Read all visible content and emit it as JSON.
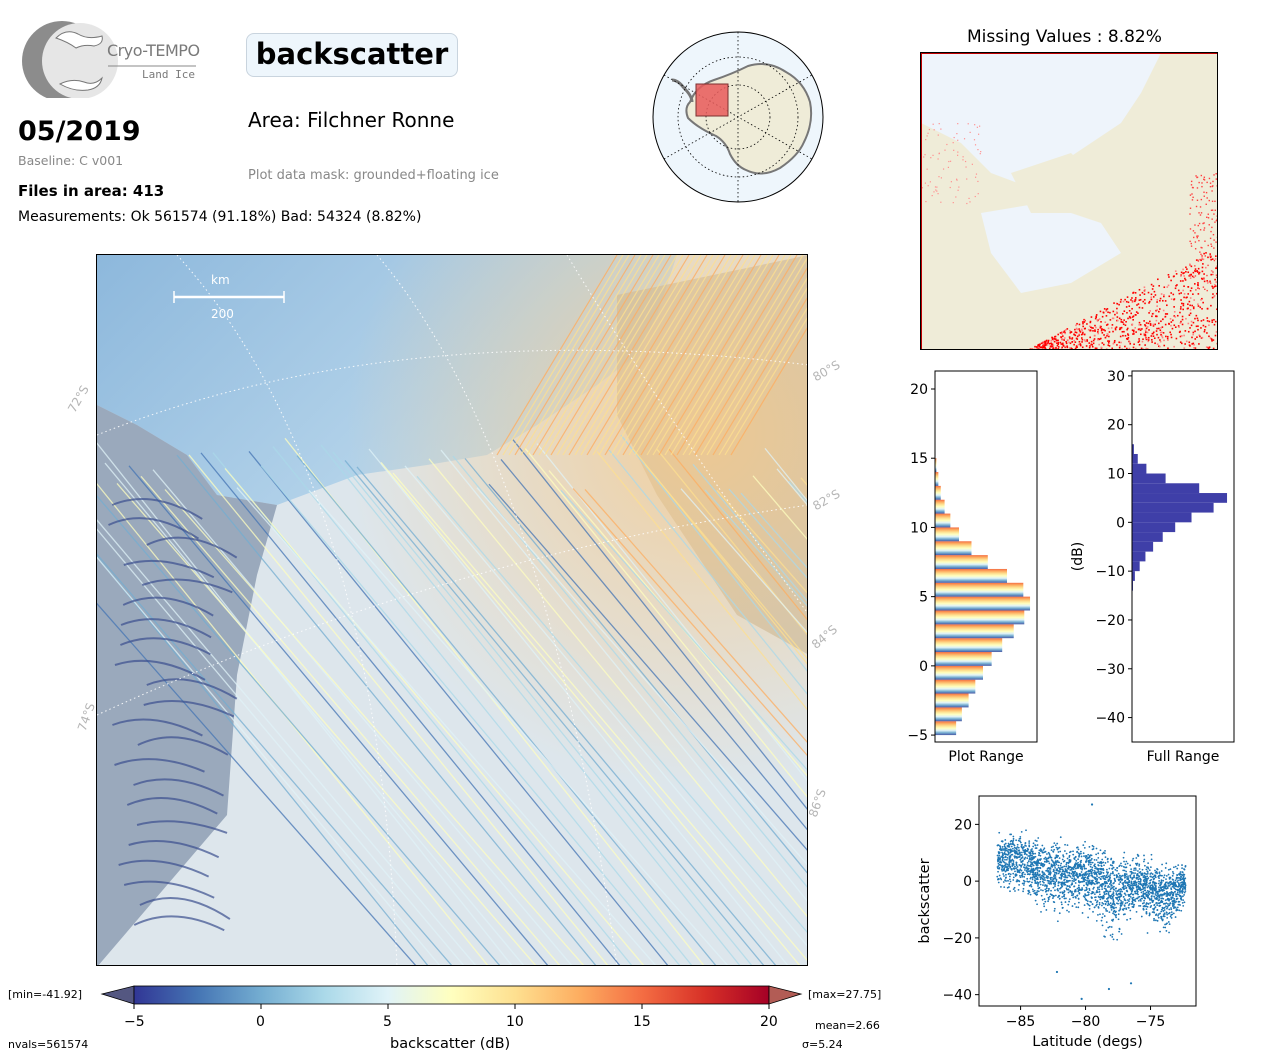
{
  "logo": {
    "name": "Cryo-TEMPO",
    "sub": "Land Ice"
  },
  "header": {
    "title": "backscatter",
    "date": "05/2019",
    "baseline": "Baseline: C v001",
    "area": "Area: Filchner Ronne",
    "mask": "Plot data mask: grounded+floating ice",
    "files": "Files in area: 413",
    "measurements": "Measurements: Ok 561574 (91.18%) Bad: 54324 (8.82%)"
  },
  "map": {
    "scale_unit": "km",
    "scale_value": "200",
    "lat_labels": [
      "72°S",
      "74°S",
      "80°S",
      "82°S",
      "84°S",
      "86°S"
    ]
  },
  "colorbar": {
    "min_label": "[min=-41.92]",
    "max_label": "[max=27.75]",
    "ticks": [
      "−5",
      "0",
      "5",
      "10",
      "15",
      "20"
    ],
    "label": "backscatter (dB)",
    "mean": "mean=2.66",
    "sigma": "σ=5.24",
    "nvals": "nvals=561574",
    "colormap": "RdYlBu_r"
  },
  "missing": {
    "title": "Missing Values : 8.82%"
  },
  "chart_data": [
    {
      "type": "histogram",
      "orientation": "horizontal",
      "xlabel": "Plot Range",
      "yticks": [
        "−5",
        "0",
        "5",
        "10",
        "15",
        "20"
      ],
      "ylim": [
        -5.5,
        21.3
      ],
      "bins": [
        -5,
        -4,
        -3,
        -2,
        -1,
        0,
        1,
        2,
        3,
        4,
        5,
        6,
        7,
        8,
        9,
        10,
        11,
        12,
        13,
        14,
        15
      ],
      "counts": [
        0.22,
        0.28,
        0.35,
        0.42,
        0.5,
        0.59,
        0.7,
        0.82,
        0.93,
        0.99,
        0.92,
        0.75,
        0.55,
        0.38,
        0.25,
        0.16,
        0.1,
        0.06,
        0.035,
        0.015,
        0.005
      ]
    },
    {
      "type": "histogram",
      "orientation": "horizontal",
      "xlabel": "Full Range",
      "ylabel": "(dB)",
      "yticks": [
        "30",
        "20",
        "10",
        "0",
        "−10",
        "−20",
        "−30",
        "−40"
      ],
      "ylim": [
        -45,
        31
      ],
      "bins": [
        -14,
        -12,
        -10,
        -8,
        -6,
        -4,
        -2,
        0,
        2,
        4,
        6,
        8,
        10,
        12,
        14,
        16
      ],
      "counts": [
        0.01,
        0.03,
        0.08,
        0.14,
        0.22,
        0.32,
        0.45,
        0.62,
        0.85,
        0.99,
        0.7,
        0.35,
        0.15,
        0.06,
        0.02,
        0.005
      ]
    },
    {
      "type": "scatter",
      "xlabel": "Latitude (degs)",
      "ylabel": "backscatter",
      "xticks": [
        "−85",
        "−80",
        "−75"
      ],
      "yticks": [
        "20",
        "0",
        "−20",
        "−40"
      ],
      "xlim": [
        -88.2,
        -71.5
      ],
      "ylim": [
        -44,
        30
      ],
      "band_upper": [
        [
          -86.8,
          18
        ],
        [
          -85,
          20
        ],
        [
          -83,
          17
        ],
        [
          -81,
          15
        ],
        [
          -79,
          17
        ],
        [
          -77,
          12
        ],
        [
          -75,
          10
        ],
        [
          -73,
          8
        ],
        [
          -72.3,
          7
        ]
      ],
      "band_lower": [
        [
          -86.8,
          -5
        ],
        [
          -85,
          -10
        ],
        [
          -83,
          -18
        ],
        [
          -81,
          -14
        ],
        [
          -79,
          -22
        ],
        [
          -78,
          -28
        ],
        [
          -76,
          -16
        ],
        [
          -74,
          -25
        ],
        [
          -72.3,
          -12
        ]
      ],
      "outliers": [
        [
          -79.5,
          27
        ],
        [
          -80.3,
          -41.5
        ],
        [
          -78.2,
          -38
        ],
        [
          -82.2,
          -32
        ],
        [
          -76.5,
          -36
        ]
      ],
      "color": "#1f77b4"
    }
  ]
}
